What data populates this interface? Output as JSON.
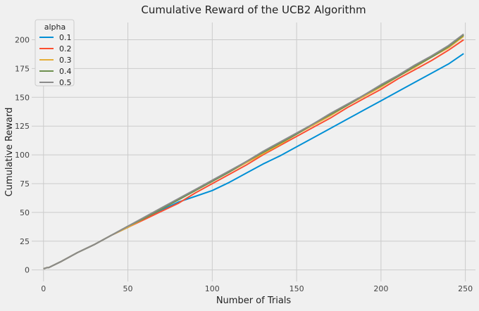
{
  "chart_data": {
    "type": "line",
    "title": "Cumulative Reward of the UCB2 Algorithm",
    "xlabel": "Number of Trials",
    "ylabel": "Cumulative Reward",
    "xlim": [
      -7,
      256
    ],
    "ylim": [
      -10,
      215
    ],
    "x_ticks": [
      0,
      50,
      100,
      150,
      200,
      250
    ],
    "y_ticks": [
      0,
      25,
      50,
      75,
      100,
      125,
      150,
      175,
      200
    ],
    "grid": true,
    "legend": {
      "title": "alpha",
      "placement": "top-left"
    },
    "series": [
      {
        "name": "0.1",
        "color": "#008fd5",
        "x": [
          0,
          2,
          3,
          10,
          20,
          30,
          40,
          50,
          60,
          70,
          80,
          90,
          100,
          110,
          120,
          130,
          140,
          150,
          160,
          170,
          180,
          190,
          200,
          210,
          220,
          230,
          240,
          249
        ],
        "y": [
          1,
          2,
          2,
          7,
          15,
          22,
          30,
          37,
          45,
          52,
          59,
          64,
          69,
          76,
          84,
          92,
          99,
          107,
          115,
          123,
          131,
          139,
          147,
          155,
          163,
          171,
          179,
          188
        ]
      },
      {
        "name": "0.2",
        "color": "#fc4f30",
        "x": [
          0,
          2,
          3,
          10,
          20,
          30,
          40,
          50,
          60,
          70,
          80,
          90,
          100,
          110,
          120,
          130,
          140,
          150,
          160,
          170,
          180,
          190,
          200,
          210,
          220,
          230,
          240,
          249
        ],
        "y": [
          1,
          2,
          2,
          7,
          15,
          22,
          30,
          37,
          44,
          51,
          58,
          67,
          75,
          83,
          91,
          100,
          108,
          116,
          124,
          132,
          141,
          149,
          157,
          166,
          174,
          182,
          191,
          200
        ]
      },
      {
        "name": "0.3",
        "color": "#e5ae38",
        "x": [
          0,
          2,
          3,
          10,
          20,
          30,
          40,
          50,
          60,
          70,
          80,
          90,
          100,
          110,
          120,
          130,
          140,
          150,
          160,
          170,
          180,
          190,
          200,
          210,
          220,
          230,
          240,
          249
        ],
        "y": [
          1,
          2,
          2,
          7,
          15,
          22,
          30,
          37,
          45,
          53,
          61,
          69,
          77,
          85,
          93,
          101,
          109,
          118,
          126,
          134,
          143,
          151,
          159,
          168,
          176,
          185,
          193,
          203
        ]
      },
      {
        "name": "0.4",
        "color": "#6d904f",
        "x": [
          0,
          2,
          3,
          10,
          20,
          30,
          40,
          50,
          60,
          70,
          80,
          90,
          100,
          110,
          120,
          130,
          140,
          150,
          160,
          170,
          180,
          190,
          200,
          210,
          220,
          230,
          240,
          249
        ],
        "y": [
          1,
          2,
          2,
          7,
          15,
          22,
          30,
          38,
          45,
          53,
          61,
          69,
          77,
          85,
          94,
          102,
          110,
          118,
          127,
          135,
          143,
          152,
          160,
          168,
          177,
          185,
          194,
          204
        ]
      },
      {
        "name": "0.5",
        "color": "#8b8b8b",
        "x": [
          0,
          2,
          3,
          10,
          20,
          30,
          40,
          50,
          60,
          70,
          80,
          90,
          100,
          110,
          120,
          130,
          140,
          150,
          160,
          170,
          180,
          190,
          200,
          210,
          220,
          230,
          240,
          249
        ],
        "y": [
          1,
          2,
          2,
          7,
          15,
          22,
          30,
          38,
          46,
          54,
          62,
          70,
          78,
          86,
          94,
          103,
          111,
          119,
          127,
          136,
          144,
          152,
          161,
          169,
          178,
          186,
          195,
          205
        ]
      }
    ]
  }
}
